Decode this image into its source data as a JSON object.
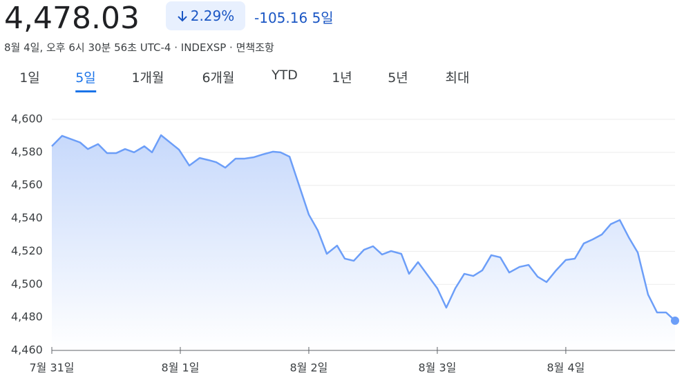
{
  "header": {
    "price": "4,478.03",
    "change_percent": "2.29%",
    "change_value": "-105.16",
    "period": "5일",
    "subtitle": "8월 4일, 오후 6시 30분 56초 UTC-4 · INDEXSP · 면책조항"
  },
  "tabs": [
    "1일",
    "5일",
    "1개월",
    "6개월",
    "YTD",
    "1년",
    "5년",
    "최대"
  ],
  "selected_tab_index": 1,
  "chart_data": {
    "type": "area",
    "color": "#6c9ef8",
    "x": [
      0,
      0.08,
      0.22,
      0.28,
      0.36,
      0.43,
      0.5,
      0.57,
      0.64,
      0.72,
      0.78,
      0.85,
      0.99,
      1.07,
      1.15,
      1.22,
      1.28,
      1.35,
      1.43,
      1.5,
      1.57,
      1.64,
      1.72,
      1.78,
      1.85,
      2.0,
      2.07,
      2.14,
      2.22,
      2.28,
      2.35,
      2.43,
      2.5,
      2.57,
      2.64,
      2.72,
      2.78,
      2.85,
      3.0,
      3.07,
      3.14,
      3.21,
      3.28,
      3.35,
      3.42,
      3.49,
      3.56,
      3.64,
      3.71,
      3.78,
      3.85,
      3.92,
      4.0,
      4.07,
      4.14,
      4.21,
      4.28,
      4.35,
      4.42,
      4.49,
      4.56,
      4.64,
      4.71,
      4.78,
      4.85
    ],
    "values": [
      4583.7,
      4590,
      4586,
      4582,
      4585,
      4579.5,
      4579.5,
      4582,
      4580,
      4583.7,
      4580,
      4590.4,
      4581.6,
      4572,
      4576.6,
      4575.3,
      4574,
      4570.7,
      4576.2,
      4576.2,
      4577,
      4578.7,
      4580.4,
      4580,
      4577.4,
      4542.3,
      4532.7,
      4518.5,
      4523.5,
      4515.6,
      4514.3,
      4521,
      4523.1,
      4518.1,
      4520.2,
      4518.5,
      4506.4,
      4513.5,
      4497.6,
      4485.9,
      4497.6,
      4506.4,
      4505.1,
      4508.5,
      4517.7,
      4516.4,
      4507.2,
      4510.6,
      4511.8,
      4504.7,
      4501.4,
      4508.1,
      4514.8,
      4515.6,
      4524.8,
      4527.3,
      4530.2,
      4536.5,
      4539,
      4528.5,
      4519.3,
      4493.9,
      4483,
      4483,
      4478
    ],
    "xlim": [
      0,
      4.85
    ],
    "xticks": [
      {
        "value": 0,
        "label": "7월 31일"
      },
      {
        "value": 1,
        "label": "8월 1일"
      },
      {
        "value": 2,
        "label": "8월 2일"
      },
      {
        "value": 3,
        "label": "8월 3일"
      },
      {
        "value": 4,
        "label": "8월 4일"
      }
    ],
    "ylim": [
      4460,
      4600
    ],
    "yticks": [
      {
        "value": 4460,
        "label": "4,460"
      },
      {
        "value": 4480,
        "label": "4,480"
      },
      {
        "value": 4500,
        "label": "4,500"
      },
      {
        "value": 4520,
        "label": "4,520"
      },
      {
        "value": 4540,
        "label": "4,540"
      },
      {
        "value": 4560,
        "label": "4,560"
      },
      {
        "value": 4580,
        "label": "4,580"
      },
      {
        "value": 4600,
        "label": "4,600"
      }
    ],
    "grid": true
  }
}
